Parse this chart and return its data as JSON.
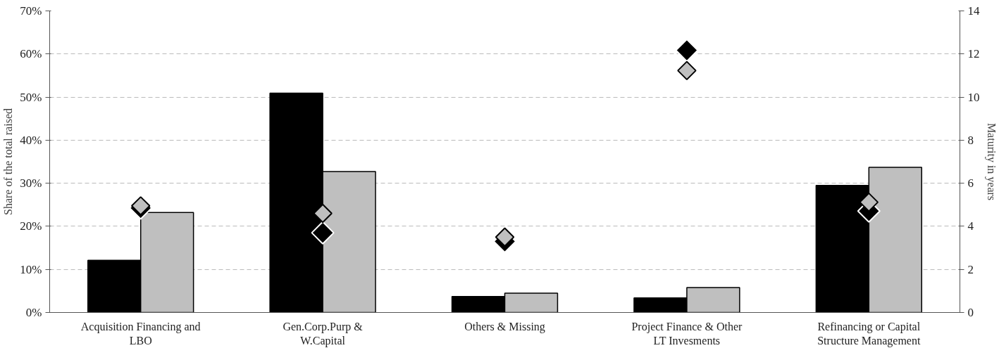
{
  "chart_data": {
    "type": "bar",
    "ylabel": "Share of the total raised",
    "y2label": "Maturity in years",
    "categories": [
      "Acquisition Financing and\nLBO",
      "Gen.Corp.Purp &\nW.Capital",
      "Others & Missing",
      "Project Finance & Other\nLT Invesments",
      "Refinancing or Capital\nStructure Management"
    ],
    "series": [
      {
        "color": "#000000",
        "values": [
          12.1,
          50.9,
          3.7,
          3.4,
          29.5
        ]
      },
      {
        "color": "#bfbfbf",
        "values": [
          23.2,
          32.7,
          4.5,
          5.8,
          33.7
        ]
      },
      {
        "type": "scatter",
        "axis": "y2",
        "marker": "diamond",
        "color": "#000000",
        "values": [
          4.85,
          3.7,
          3.3,
          12.17,
          4.71
        ]
      },
      {
        "type": "scatter",
        "axis": "y2",
        "marker": "diamond",
        "color": "#bfbfbf",
        "values": [
          4.95,
          4.6,
          3.5,
          11.23,
          5.12
        ]
      }
    ],
    "ylim": [
      0,
      70
    ],
    "yticks": [
      {
        "value": 0,
        "label": "0%"
      },
      {
        "value": 10,
        "label": "10%"
      },
      {
        "value": 20,
        "label": "20%"
      },
      {
        "value": 30,
        "label": "30%"
      },
      {
        "value": 40,
        "label": "40%"
      },
      {
        "value": 50,
        "label": "50%"
      },
      {
        "value": 60,
        "label": "60%"
      },
      {
        "value": 70,
        "label": "70%"
      }
    ],
    "y2lim": [
      0,
      14
    ],
    "y2ticks": [
      0,
      2,
      4,
      6,
      8,
      10,
      12,
      14
    ],
    "grid": "y"
  }
}
